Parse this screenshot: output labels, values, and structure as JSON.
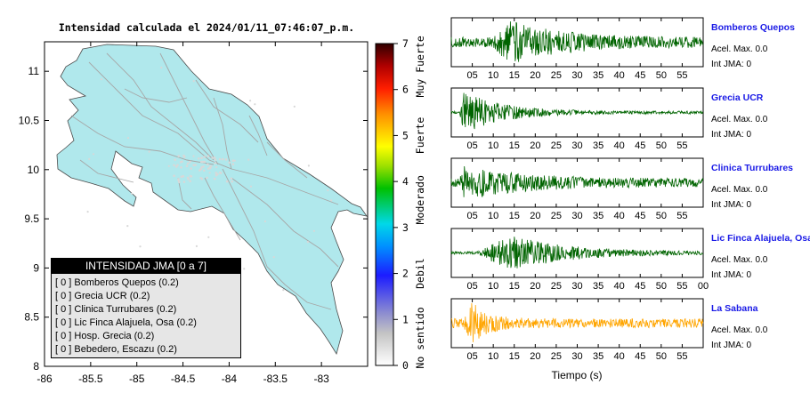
{
  "title": "Intensidad calculada el 2024/01/11_07:46:07_p.m.",
  "map": {
    "xticks": [
      "-86",
      "-85.5",
      "-85",
      "-84.5",
      "-84",
      "-83.5",
      "-83"
    ],
    "yticks": [
      "11",
      "10.5",
      "10",
      "9.5",
      "9",
      "8.5",
      "8"
    ],
    "xlim": [
      -86,
      -82.5
    ],
    "ylim": [
      8,
      11.3
    ],
    "land_color": "#b0e8ec",
    "road_color": "#a0a0a0"
  },
  "colorbar": {
    "ticks": [
      "0",
      "1",
      "2",
      "3",
      "4",
      "5",
      "6",
      "7"
    ],
    "labels": [
      "No sentido",
      "Debil",
      "Moderado",
      "Fuerte",
      "Muy Fuerte"
    ],
    "range": [
      0,
      7
    ]
  },
  "legend": {
    "title": "INTENSIDAD JMA [0 a 7]",
    "items": [
      "[ 0 ]  Bomberos Quepos (0.2)",
      "[ 0 ]  Grecia UCR (0.2)",
      "[ 0 ]  Clinica Turrubares (0.2)",
      "[ 0 ]  Lic Finca Alajuela, Osa (0.2)",
      "[ 0 ]  Hosp. Grecia (0.2)",
      "[ 0 ]  Bebedero, Escazu (0.2)"
    ]
  },
  "stations": [
    {
      "name": "Bomberos Quepos",
      "acel": "Acel. Max. 0.0",
      "int": "Int JMA: 0",
      "color": "#006400",
      "xticks": [
        "05",
        "10",
        "15",
        "20",
        "25",
        "30",
        "35",
        "40",
        "45",
        "50",
        "55"
      ]
    },
    {
      "name": "Grecia UCR",
      "acel": "Acel. Max. 0.0",
      "int": "Int JMA: 0",
      "color": "#006400",
      "xticks": [
        "05",
        "10",
        "15",
        "20",
        "25",
        "30",
        "35",
        "40",
        "45",
        "50",
        "55"
      ]
    },
    {
      "name": "Clinica Turrubares",
      "acel": "Acel. Max. 0.0",
      "int": "Int JMA: 0",
      "color": "#006400",
      "xticks": [
        "05",
        "10",
        "15",
        "20",
        "25",
        "30",
        "35",
        "40",
        "45",
        "50",
        "55"
      ]
    },
    {
      "name": "Lic Finca Alajuela, Osa",
      "acel": "Acel. Max. 0.0",
      "int": "Int JMA: 0",
      "color": "#006400",
      "xticks": [
        "05",
        "10",
        "15",
        "20",
        "25",
        "30",
        "35",
        "40",
        "45",
        "50",
        "55",
        "00"
      ]
    },
    {
      "name": "La Sabana",
      "acel": "Acel. Max. 0.0",
      "int": "Int JMA: 0",
      "color": "#ffa500",
      "xticks": [
        "05",
        "10",
        "15",
        "20",
        "25",
        "30",
        "35",
        "40",
        "45",
        "50",
        "55"
      ]
    }
  ],
  "time_label": "Tiempo (s)",
  "chart_data": {
    "type": "line",
    "title": "Intensidad calculada el 2024/01/11_07:46:07_p.m.",
    "xlabel": "Tiempo (s)",
    "xlim": [
      0,
      60
    ],
    "series": [
      {
        "name": "Bomberos Quepos",
        "peak_s": 14,
        "max_accel": 0.0,
        "jma": 0
      },
      {
        "name": "Grecia UCR",
        "peak_s": 3,
        "max_accel": 0.0,
        "jma": 0
      },
      {
        "name": "Clinica Turrubares",
        "peak_s": 3,
        "max_accel": 0.0,
        "jma": 0
      },
      {
        "name": "Lic Finca Alajuela, Osa",
        "peak_s": 15,
        "max_accel": 0.0,
        "jma": 0
      },
      {
        "name": "La Sabana",
        "peak_s": 5,
        "max_accel": 0.0,
        "jma": 0
      }
    ]
  }
}
